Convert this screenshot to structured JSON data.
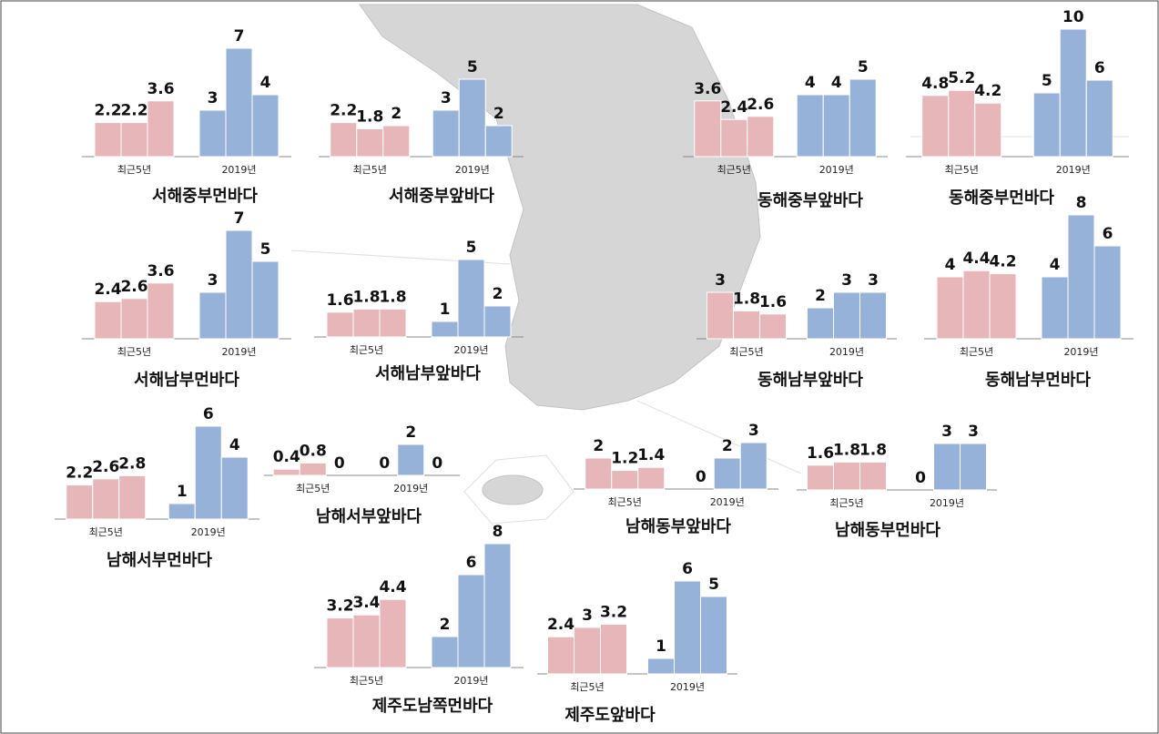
{
  "chart_data": [
    {
      "type": "bar",
      "title": "서해중부먼바다",
      "categories": [
        "최근5년",
        "2019년"
      ],
      "values": [
        [
          2.2,
          2.2,
          3.6
        ],
        [
          3,
          7,
          4
        ]
      ],
      "colors": [
        "#e6b6b8",
        "#97b2d9"
      ]
    },
    {
      "type": "bar",
      "title": "서해중부앞바다",
      "categories": [
        "최근5년",
        "2019년"
      ],
      "values": [
        [
          2.2,
          1.8,
          2
        ],
        [
          3,
          5,
          2
        ]
      ],
      "colors": [
        "#e6b6b8",
        "#97b2d9"
      ]
    },
    {
      "type": "bar",
      "title": "동해중부앞바다",
      "categories": [
        "최근5년",
        "2019년"
      ],
      "values": [
        [
          3.6,
          2.4,
          2.6
        ],
        [
          4,
          4,
          5
        ]
      ],
      "colors": [
        "#e6b6b8",
        "#97b2d9"
      ]
    },
    {
      "type": "bar",
      "title": "동해중부먼바다",
      "categories": [
        "최근5년",
        "2019년"
      ],
      "values": [
        [
          4.8,
          5.2,
          4.2
        ],
        [
          5,
          10,
          6
        ]
      ],
      "colors": [
        "#e6b6b8",
        "#97b2d9"
      ]
    },
    {
      "type": "bar",
      "title": "서해남부먼바다",
      "categories": [
        "최근5년",
        "2019년"
      ],
      "values": [
        [
          2.4,
          2.6,
          3.6
        ],
        [
          3,
          7,
          5
        ]
      ],
      "colors": [
        "#e6b6b8",
        "#97b2d9"
      ]
    },
    {
      "type": "bar",
      "title": "서해남부앞바다",
      "categories": [
        "최근5년",
        "2019년"
      ],
      "values": [
        [
          1.6,
          1.8,
          1.8
        ],
        [
          1,
          5,
          2
        ]
      ],
      "colors": [
        "#e6b6b8",
        "#97b2d9"
      ]
    },
    {
      "type": "bar",
      "title": "동해남부앞바다",
      "categories": [
        "최근5년",
        "2019년"
      ],
      "values": [
        [
          3,
          1.8,
          1.6
        ],
        [
          2,
          3,
          3
        ]
      ],
      "colors": [
        "#e6b6b8",
        "#97b2d9"
      ]
    },
    {
      "type": "bar",
      "title": "동해남부먼바다",
      "categories": [
        "최근5년",
        "2019년"
      ],
      "values": [
        [
          4,
          4.4,
          4.2
        ],
        [
          4,
          8,
          6
        ]
      ],
      "colors": [
        "#e6b6b8",
        "#97b2d9"
      ]
    },
    {
      "type": "bar",
      "title": "남해서부먼바다",
      "categories": [
        "최근5년",
        "2019년"
      ],
      "values": [
        [
          2.2,
          2.6,
          2.8
        ],
        [
          1,
          6,
          4
        ]
      ],
      "colors": [
        "#e6b6b8",
        "#97b2d9"
      ]
    },
    {
      "type": "bar",
      "title": "남해서부앞바다",
      "categories": [
        "최근5년",
        "2019년"
      ],
      "values": [
        [
          0.4,
          0.8,
          0
        ],
        [
          0,
          2,
          0
        ]
      ],
      "colors": [
        "#e6b6b8",
        "#97b2d9"
      ]
    },
    {
      "type": "bar",
      "title": "남해동부앞바다",
      "categories": [
        "최근5년",
        "2019년"
      ],
      "values": [
        [
          2,
          1.2,
          1.4
        ],
        [
          0,
          2,
          3
        ]
      ],
      "colors": [
        "#e6b6b8",
        "#97b2d9"
      ]
    },
    {
      "type": "bar",
      "title": "남해동부먼바다",
      "categories": [
        "최근5년",
        "2019년"
      ],
      "values": [
        [
          1.6,
          1.8,
          1.8
        ],
        [
          0,
          3,
          3
        ]
      ],
      "colors": [
        "#e6b6b8",
        "#97b2d9"
      ]
    },
    {
      "type": "bar",
      "title": "제주도남쪽먼바다",
      "categories": [
        "최근5년",
        "2019년"
      ],
      "values": [
        [
          3.2,
          3.4,
          4.4
        ],
        [
          2,
          6,
          8
        ]
      ],
      "colors": [
        "#e6b6b8",
        "#97b2d9"
      ]
    },
    {
      "type": "bar",
      "title": "제주도앞바다",
      "categories": [
        "최근5년",
        "2019년"
      ],
      "values": [
        [
          2.4,
          3,
          3.2
        ],
        [
          1,
          6,
          5
        ]
      ],
      "colors": [
        "#e6b6b8",
        "#97b2d9"
      ]
    }
  ]
}
